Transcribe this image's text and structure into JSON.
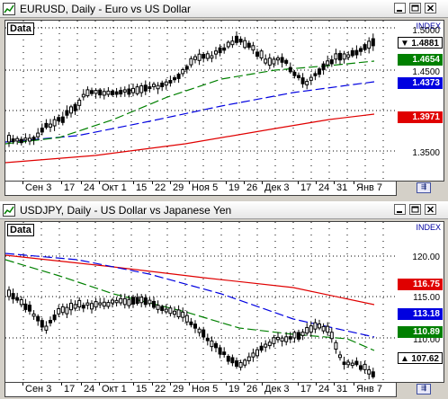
{
  "panes": [
    {
      "title": "EURUSD, Daily - Euro vs US Dollar",
      "data_label": "Data",
      "index_label": "INDEX",
      "yticks": [
        "1.5000",
        "1.4500",
        "1.3500"
      ],
      "price_badges": [
        {
          "text": "1.4881",
          "color": "#ffffff"
        },
        {
          "text": "1.4654",
          "color": "#008000"
        },
        {
          "text": "1.4373",
          "color": "#0000e0"
        },
        {
          "text": "1.3971",
          "color": "#e00000"
        }
      ],
      "xlabels": [
        "Сен 3",
        "17",
        "24",
        "Окт 1",
        "15",
        "22",
        "29",
        "Ноя 5",
        "19",
        "26",
        "Дек 3",
        "17",
        "24",
        "31",
        "Янв 7"
      ]
    },
    {
      "title": "USDJPY, Daily - US Dollar vs Japanese Yen",
      "data_label": "Data",
      "index_label": "INDEX",
      "yticks": [
        "120.00",
        "115.00",
        "110.00"
      ],
      "price_badges": [
        {
          "text": "116.75",
          "color": "#e00000"
        },
        {
          "text": "113.18",
          "color": "#0000e0"
        },
        {
          "text": "110.89",
          "color": "#008000"
        },
        {
          "text": "107.62",
          "color": "#ffffff"
        }
      ],
      "xlabels": [
        "Сен 3",
        "17",
        "24",
        "Окт 1",
        "15",
        "22",
        "29",
        "Ноя 5",
        "19",
        "26",
        "Дек 3",
        "17",
        "24",
        "31",
        "Янв 7"
      ]
    }
  ],
  "colors": {
    "ma_fast": "#008000",
    "ma_mid": "#0000e0",
    "ma_slow": "#e00000",
    "candle": "#000000",
    "grid": "#000000"
  }
}
